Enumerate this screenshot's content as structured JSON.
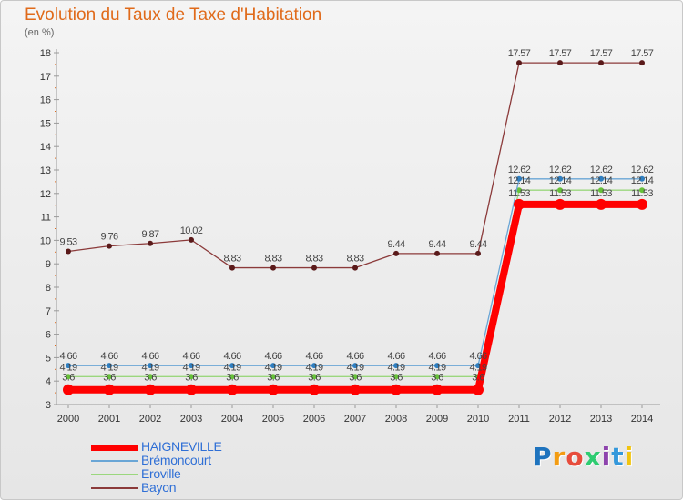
{
  "title": "Evolution du Taux de Taxe d'Habitation",
  "unit_label": "(en %)",
  "logo": {
    "text": "Proxiti",
    "colors": [
      "#1e73be",
      "#f39c12",
      "#e74c3c",
      "#2ecc71",
      "#8e44ad",
      "#3498db",
      "#f1c40f"
    ]
  },
  "chart_data": {
    "type": "line",
    "title": "Evolution du Taux de Taxe d'Habitation",
    "ylabel": "(en %)",
    "xlabel": "",
    "ylim": [
      3,
      18
    ],
    "yticks": [
      3,
      4,
      5,
      6,
      7,
      8,
      9,
      10,
      11,
      12,
      13,
      14,
      15,
      16,
      17,
      18
    ],
    "grid": false,
    "legend": "bottom-left",
    "x": [
      "2000",
      "2001",
      "2002",
      "2003",
      "2004",
      "2005",
      "2006",
      "2007",
      "2008",
      "2009",
      "2010",
      "2011",
      "2012",
      "2013",
      "2014"
    ],
    "series": [
      {
        "name": "HAIGNEVILLE",
        "color": "#ff0000",
        "marker": "#ff0000",
        "bold": true,
        "values": [
          3.63,
          3.63,
          3.63,
          3.63,
          3.63,
          3.63,
          3.63,
          3.63,
          3.63,
          3.63,
          3.63,
          11.53,
          11.53,
          11.53,
          11.53
        ],
        "labels": [
          "",
          "",
          "",
          "",
          "",
          "",
          "",
          "",
          "",
          "",
          "",
          "",
          "",
          "",
          ""
        ]
      },
      {
        "name": "Brémoncourt",
        "color": "#6aa6d6",
        "marker": "#2f7fc1",
        "bold": false,
        "values": [
          4.66,
          4.66,
          4.66,
          4.66,
          4.66,
          4.66,
          4.66,
          4.66,
          4.66,
          4.66,
          4.66,
          12.62,
          12.62,
          12.62,
          12.62
        ],
        "labels": [
          "4.66",
          "4.66",
          "4.66",
          "4.66",
          "4.66",
          "4.66",
          "4.66",
          "4.66",
          "4.66",
          "4.66",
          "4.66",
          "12.62",
          "12.62",
          "12.62",
          "12.62"
        ]
      },
      {
        "name": "Eroville",
        "color": "#9bd77e",
        "marker": "#67c23a",
        "bold": false,
        "values": [
          4.19,
          4.19,
          4.19,
          4.19,
          4.19,
          4.19,
          4.19,
          4.19,
          4.19,
          4.19,
          4.19,
          12.14,
          12.14,
          12.14,
          12.14
        ],
        "labels": [
          "4.19",
          "4.19",
          "4.19",
          "4.19",
          "4.19",
          "4.19",
          "4.19",
          "4.19",
          "4.19",
          "4.19",
          "4.19",
          "12.14",
          "12.14",
          "12.14",
          "12.14"
        ]
      },
      {
        "name": "Bayon",
        "color": "#8b3a3a",
        "marker": "#5a1a1a",
        "bold": false,
        "values": [
          9.53,
          9.76,
          9.87,
          10.02,
          8.83,
          8.83,
          8.83,
          8.83,
          9.44,
          9.44,
          9.44,
          17.57,
          17.57,
          17.57,
          17.57
        ],
        "labels": [
          "9.53",
          "9.76",
          "9.87",
          "10.02",
          "8.83",
          "8.83",
          "8.83",
          "8.83",
          "9.44",
          "9.44",
          "9.44",
          "17.57",
          "17.57",
          "17.57",
          "17.57"
        ]
      }
    ],
    "extra_labels": [
      {
        "series_index": 0,
        "labels": [
          "3.6",
          "3.6",
          "3.6",
          "3.6",
          "3.6",
          "3.6",
          "3.6",
          "3.6",
          "3.6",
          "3.6",
          "3.6",
          "11.53",
          "11.53",
          "11.53",
          "11.53"
        ],
        "anchor_value": 4.19
      }
    ]
  }
}
